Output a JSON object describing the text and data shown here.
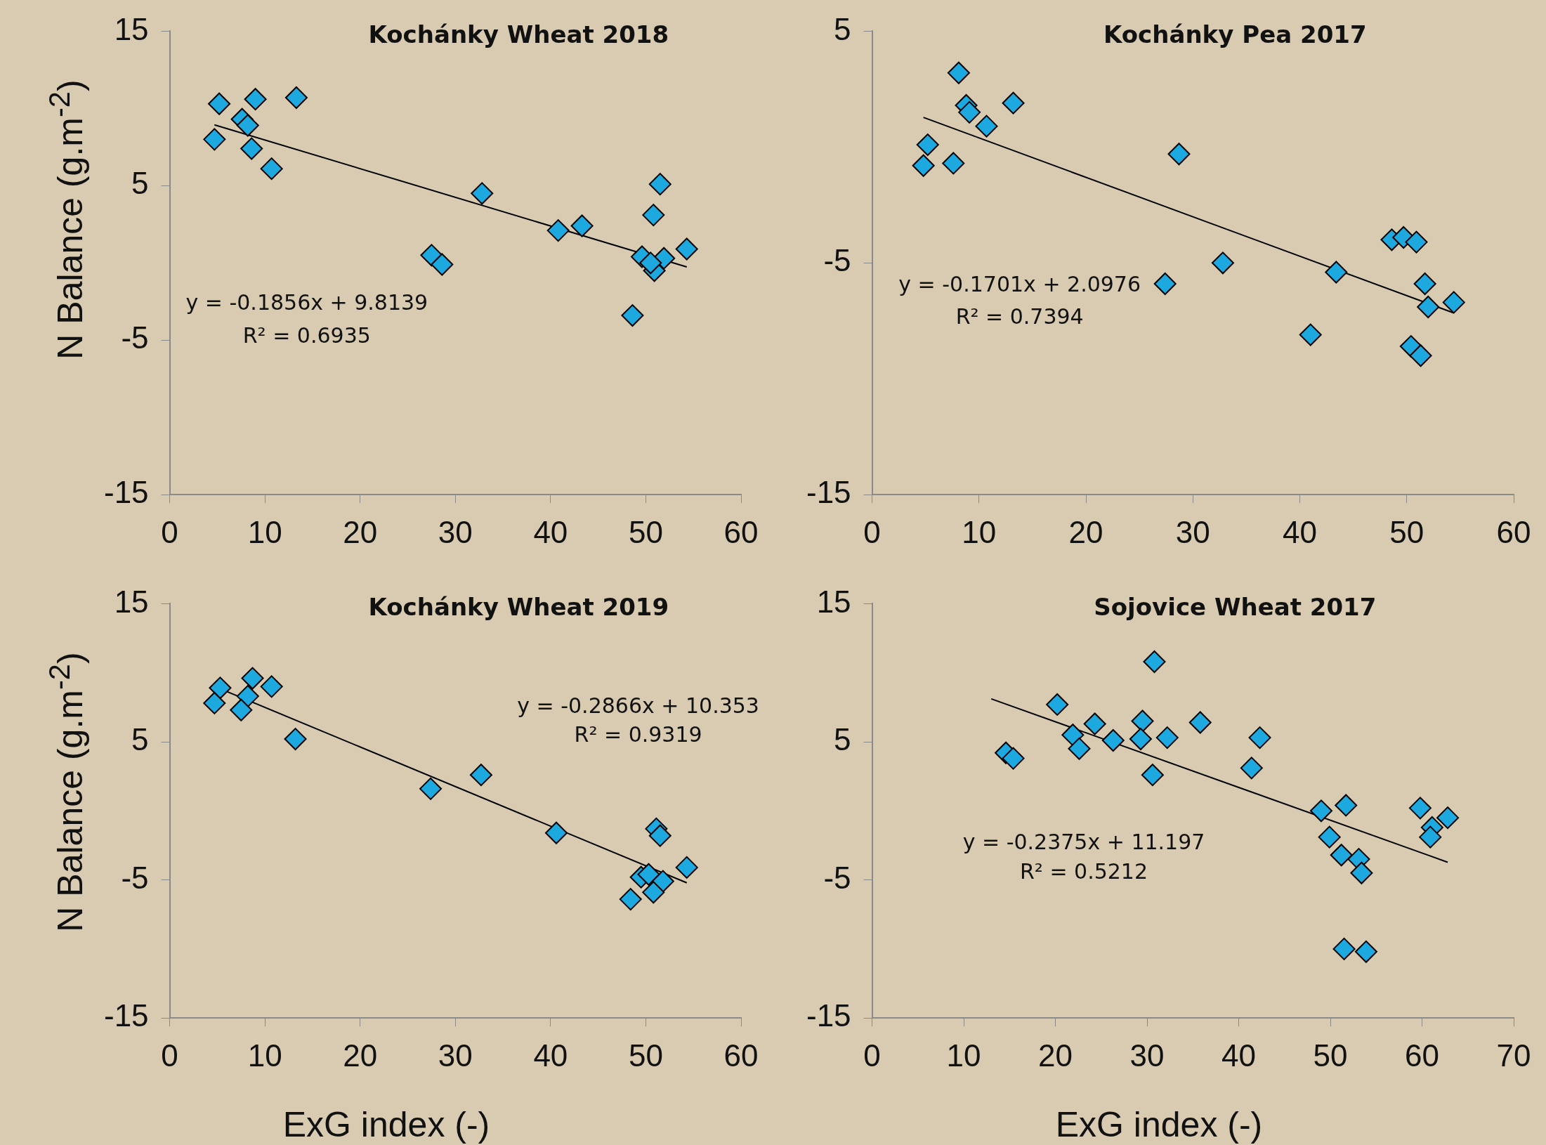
{
  "chart_data": [
    {
      "type": "scatter",
      "title": "Kochánky Wheat 2018",
      "ylabel": "N Balance  (g.m$^{-2}$)",
      "xlim": [
        0,
        60
      ],
      "ylim": [
        -15,
        15
      ],
      "xticks": [
        0,
        10,
        20,
        30,
        40,
        50,
        60
      ],
      "yticks": [
        -15,
        -5,
        5,
        15
      ],
      "marker": "diamond",
      "series": [
        {
          "color": "#1ea8e0",
          "x": [
            5.2,
            9.0,
            13.3,
            7.6,
            8.2,
            4.7,
            8.6,
            10.7,
            32.8,
            40.8,
            43.3,
            27.5,
            28.6,
            51.5,
            50.8,
            49.6,
            50.9,
            51.9,
            54.3,
            48.6,
            50.5
          ],
          "values": [
            10.3,
            10.6,
            10.7,
            9.3,
            8.9,
            8.0,
            7.4,
            6.1,
            4.5,
            2.1,
            2.4,
            0.5,
            -0.1,
            5.1,
            3.1,
            0.4,
            -0.5,
            0.3,
            0.9,
            -3.4,
            0.0
          ]
        },
        {
          "type": "line",
          "color": "#000000",
          "marker": "none",
          "x": [
            4.7,
            54.3
          ],
          "values": [
            8.94,
            -0.26
          ]
        }
      ],
      "annotations": [
        "y = -0.1856x + 9.8139",
        "R² = 0.6935"
      ]
    },
    {
      "type": "scatter",
      "title": "Kochánky Pea 2017",
      "xlim": [
        0,
        60
      ],
      "ylim": [
        -15,
        5
      ],
      "xticks": [
        0,
        10,
        20,
        30,
        40,
        50,
        60
      ],
      "yticks": [
        -15,
        -5,
        5
      ],
      "marker": "diamond",
      "series": [
        {
          "color": "#1ea8e0",
          "x": [
            8.1,
            13.2,
            8.8,
            9.1,
            10.7,
            5.2,
            4.8,
            7.6,
            28.7,
            32.8,
            27.4,
            43.4,
            41.0,
            48.6,
            49.7,
            50.9,
            51.7,
            52.0,
            54.4,
            50.4,
            51.3
          ],
          "values": [
            3.2,
            1.9,
            1.8,
            1.5,
            0.9,
            0.1,
            -0.8,
            -0.7,
            -0.3,
            -5.0,
            -5.9,
            -5.4,
            -8.1,
            -4.0,
            -3.9,
            -4.1,
            -5.9,
            -6.9,
            -6.7,
            -8.6,
            -9.0
          ]
        },
        {
          "type": "line",
          "color": "#000000",
          "marker": "none",
          "x": [
            4.8,
            54.4
          ],
          "values": [
            1.28,
            -7.16
          ]
        }
      ],
      "annotations": [
        "y = -0.1701x + 2.0976",
        "R² = 0.7394"
      ]
    },
    {
      "type": "scatter",
      "title": "Kochánky Wheat 2019",
      "xlabel": "ExG index (-)",
      "ylabel": "N Balance (g.m$^{-2}$)",
      "xlim": [
        0,
        60
      ],
      "ylim": [
        -15,
        15
      ],
      "xticks": [
        0,
        10,
        20,
        30,
        40,
        50,
        60
      ],
      "yticks": [
        -15,
        -5,
        5,
        15
      ],
      "marker": "diamond",
      "series": [
        {
          "color": "#1ea8e0",
          "x": [
            5.3,
            8.7,
            10.7,
            8.2,
            4.7,
            7.5,
            13.2,
            27.4,
            32.7,
            40.6,
            51.1,
            51.5,
            54.3,
            49.5,
            50.3,
            51.8,
            50.8,
            48.4
          ],
          "values": [
            8.9,
            9.6,
            9.0,
            8.3,
            7.8,
            7.3,
            5.2,
            1.6,
            2.6,
            -1.6,
            -1.3,
            -1.8,
            -4.1,
            -4.8,
            -4.6,
            -5.1,
            -5.9,
            -6.4
          ]
        },
        {
          "type": "line",
          "color": "#000000",
          "marker": "none",
          "x": [
            4.7,
            54.3
          ],
          "values": [
            9.01,
            -5.21
          ]
        }
      ],
      "annotations": [
        "y = -0.2866x + 10.353",
        "R² = 0.9319"
      ]
    },
    {
      "type": "scatter",
      "title": "Sojovice Wheat 2017",
      "xlabel": "ExG index (-)",
      "xlim": [
        0,
        70
      ],
      "ylim": [
        -15,
        15
      ],
      "xticks": [
        0,
        10,
        20,
        30,
        40,
        50,
        60,
        70
      ],
      "yticks": [
        -15,
        -5,
        5,
        15
      ],
      "marker": "diamond",
      "series": [
        {
          "color": "#1ea8e0",
          "x": [
            30.8,
            20.2,
            24.3,
            29.5,
            35.8,
            21.9,
            26.3,
            29.3,
            32.2,
            42.3,
            22.6,
            14.6,
            15.4,
            null,
            41.4,
            30.6,
            49.0,
            51.7,
            59.8,
            62.8,
            null,
            61.1,
            60.9,
            49.9,
            51.2,
            53.1,
            53.4,
            51.5,
            53.9
          ],
          "values": [
            10.8,
            7.7,
            6.3,
            6.5,
            6.4,
            5.5,
            5.1,
            5.2,
            5.3,
            5.3,
            4.5,
            4.2,
            3.8,
            null,
            3.1,
            2.6,
            0.0,
            0.4,
            0.2,
            -0.5,
            null,
            -1.2,
            -1.9,
            -1.9,
            -3.2,
            -3.5,
            -4.5,
            -10.0,
            -10.2
          ]
        },
        {
          "type": "line",
          "color": "#000000",
          "marker": "none",
          "x": [
            13,
            62.8
          ],
          "values": [
            8.11,
            -3.72
          ]
        }
      ],
      "annotations": [
        "y = -0.2375x + 11.197",
        "R² = 0.5212"
      ]
    }
  ]
}
